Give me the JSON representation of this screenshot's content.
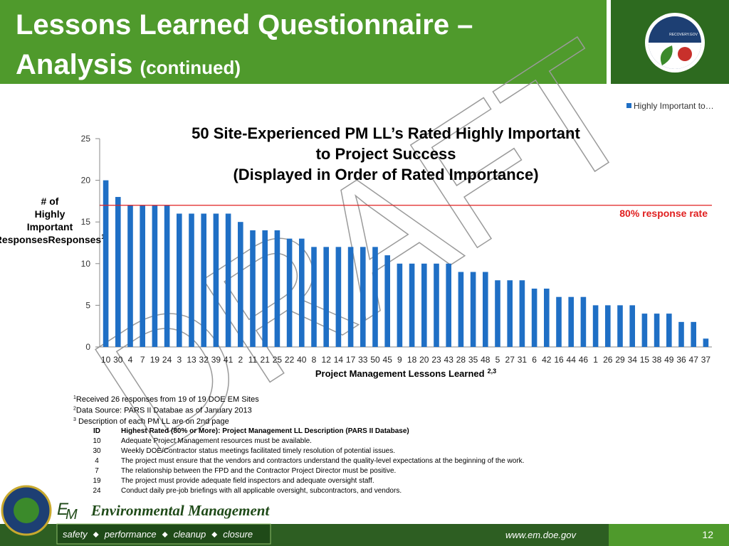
{
  "header": {
    "title_line1": "Lessons Learned Questionnaire –",
    "title_line2": "Analysis",
    "title_suffix": "(continued)",
    "logo_text": "RECOVERY.GOV"
  },
  "watermark": "DRAFT",
  "chart_data": {
    "type": "bar",
    "title": [
      "50 Site-Experienced PM LL’s Rated Highly Important",
      "to Project Success",
      "(Displayed in Order of Rated Importance)"
    ],
    "categories": [
      "10",
      "30",
      "4",
      "7",
      "19",
      "24",
      "3",
      "13",
      "32",
      "39",
      "41",
      "2",
      "11",
      "21",
      "25",
      "22",
      "40",
      "8",
      "12",
      "14",
      "17",
      "33",
      "50",
      "45",
      "9",
      "18",
      "20",
      "23",
      "43",
      "28",
      "35",
      "48",
      "5",
      "27",
      "31",
      "6",
      "42",
      "16",
      "44",
      "46",
      "1",
      "26",
      "29",
      "34",
      "15",
      "38",
      "49",
      "36",
      "47",
      "37"
    ],
    "series": [
      {
        "name": "Highly Important to…",
        "color": "#1f6fc5",
        "values": [
          20,
          18,
          17,
          17,
          17,
          17,
          16,
          16,
          16,
          16,
          16,
          15,
          14,
          14,
          14,
          13,
          13,
          12,
          12,
          12,
          12,
          12,
          12,
          11,
          10,
          10,
          10,
          10,
          10,
          9,
          9,
          9,
          8,
          8,
          8,
          7,
          7,
          6,
          6,
          6,
          5,
          5,
          5,
          5,
          4,
          4,
          4,
          3,
          3,
          1
        ]
      }
    ],
    "ylim": [
      0,
      25
    ],
    "yticks": [
      0,
      5,
      10,
      15,
      20,
      25
    ],
    "y_label": [
      "# of",
      "Highly",
      "Important",
      "Responses"
    ],
    "y_label_note": "1",
    "x_label": "Project Management Lessons Learned",
    "x_label_note": "2,3",
    "reference_line": {
      "value": 17,
      "label": "80% response rate",
      "color": "#e02020"
    },
    "legend": "top-right"
  },
  "footnotes": [
    {
      "mark": "1",
      "text": "Received 26 responses from 19 of 19 DOE EM Sites"
    },
    {
      "mark": "2",
      "text": "Data Source: PARS II Databae as of January 2013"
    },
    {
      "mark": "3",
      "text": " Description of each PM LL are on 2nd page"
    }
  ],
  "table": {
    "header": [
      "ID",
      "Highest Rated (80% or More):  Project Management LL Description (PARS II Database)"
    ],
    "rows": [
      [
        "10",
        "Adequate Project Management resources must be available."
      ],
      [
        "30",
        "Weekly DOE/Contractor status meetings facilitated timely resolution of potential issues."
      ],
      [
        "4",
        "The project must ensure that the vendors and contractors understand the quality-level expectations at the beginning of the work."
      ],
      [
        "7",
        "The relationship between the FPD and the Contractor Project Director must be positive."
      ],
      [
        "19",
        "The project must provide adequate field inspectors and adequate oversight staff."
      ],
      [
        "24",
        "Conduct daily pre-job briefings with all applicable oversight, subcontractors, and vendors."
      ]
    ]
  },
  "footer": {
    "logo": [
      "E",
      "M"
    ],
    "org": "Environmental Management",
    "motto": [
      "safety",
      "performance",
      "cleanup",
      "closure"
    ],
    "url": "www.em.doe.gov",
    "page": "12"
  }
}
